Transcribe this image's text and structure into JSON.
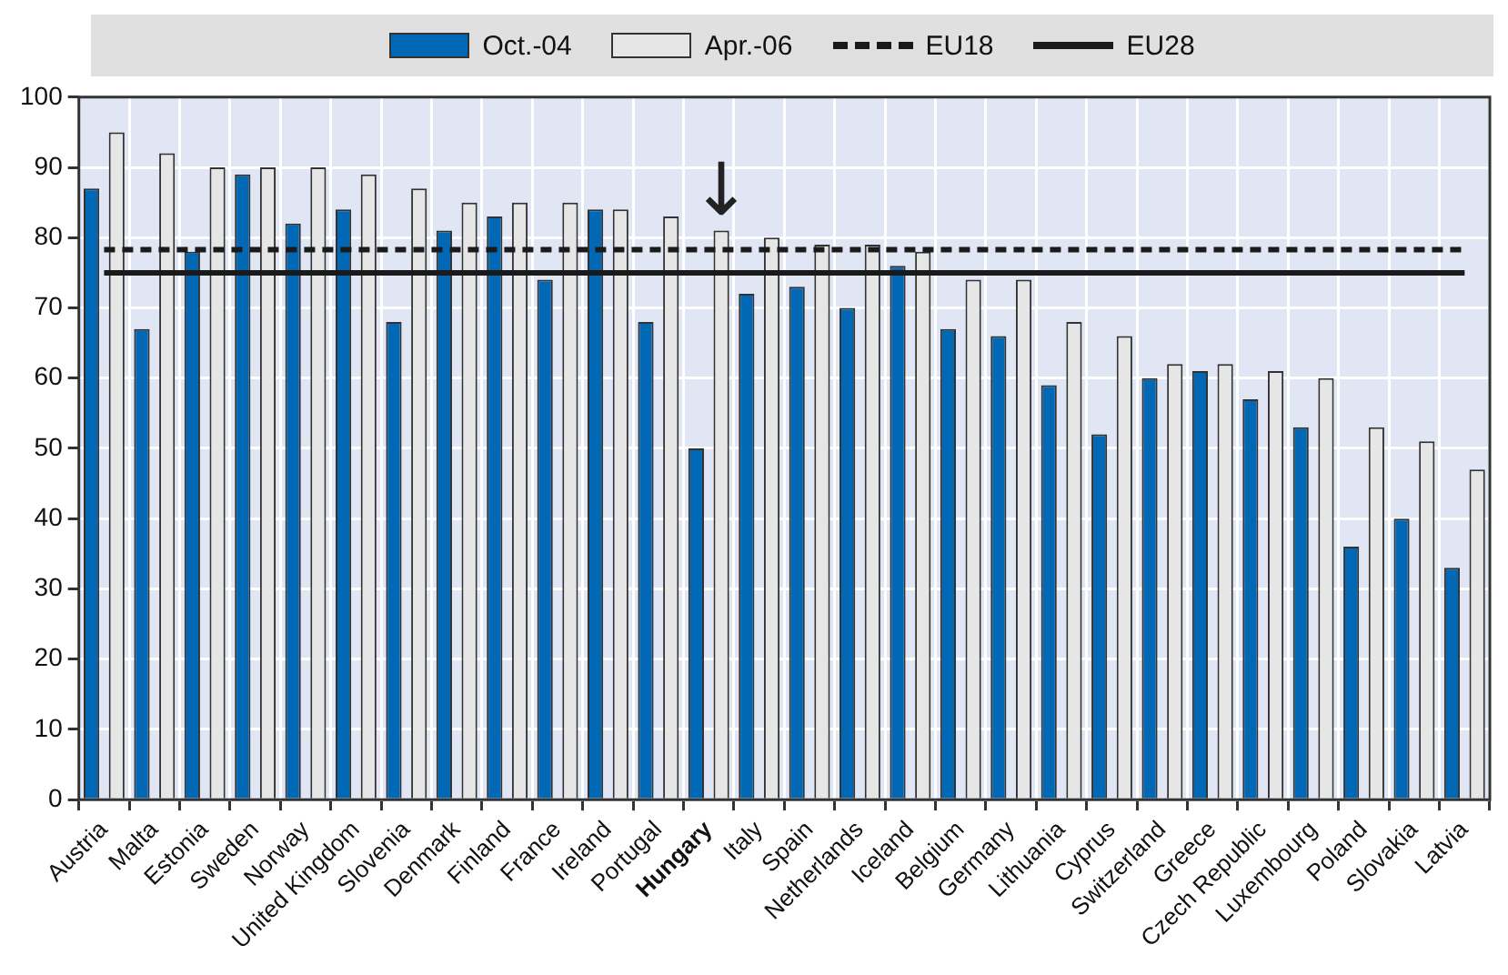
{
  "chart_data": {
    "type": "bar",
    "categories": [
      "Austria",
      "Malta",
      "Estonia",
      "Sweden",
      "Norway",
      "United Kingdom",
      "Slovenia",
      "Denmark",
      "Finland",
      "France",
      "Ireland",
      "Portugal",
      "Hungary",
      "Italy",
      "Spain",
      "Netherlands",
      "Iceland",
      "Belgium",
      "Germany",
      "Lithuania",
      "Cyprus",
      "Switzerland",
      "Greece",
      "Czech Republic",
      "Luxembourg",
      "Poland",
      "Slovakia",
      "Latvia"
    ],
    "series": [
      {
        "name": "Oct.-04",
        "color": "#0068b4",
        "values": [
          87,
          67,
          78,
          89,
          82,
          84,
          68,
          81,
          83,
          74,
          84,
          68,
          50,
          72,
          73,
          70,
          76,
          67,
          66,
          59,
          52,
          60,
          61,
          57,
          53,
          36,
          40,
          33
        ]
      },
      {
        "name": "Apr.-06",
        "color": "#e6e6e6",
        "values": [
          95,
          92,
          90,
          90,
          90,
          89,
          87,
          85,
          85,
          85,
          84,
          83,
          81,
          80,
          79,
          79,
          78,
          74,
          74,
          68,
          66,
          62,
          62,
          61,
          60,
          53,
          51,
          47
        ]
      },
      {
        "name": "EU18",
        "type": "line",
        "color": "#1a1a1a",
        "line_style": "dashed",
        "values": [
          78.3,
          78.3,
          78.3,
          78.3,
          78.3,
          78.3,
          78.3,
          78.3,
          78.3,
          78.3,
          78.3,
          78.3,
          78.3,
          78.3,
          78.3,
          78.3,
          78.3,
          78.3,
          78.3,
          78.3,
          78.3,
          78.3,
          78.3,
          78.3,
          78.3,
          78.3,
          78.3,
          78.3
        ]
      },
      {
        "name": "EU28",
        "type": "line",
        "color": "#1a1a1a",
        "line_style": "solid",
        "values": [
          75,
          75,
          75,
          75,
          75,
          75,
          75,
          75,
          75,
          75,
          75,
          75,
          75,
          75,
          75,
          75,
          75,
          75,
          75,
          75,
          75,
          75,
          75,
          75,
          75,
          75,
          75,
          75
        ]
      }
    ],
    "ylim": [
      0,
      100
    ],
    "yticks": [
      0,
      10,
      20,
      30,
      40,
      50,
      60,
      70,
      80,
      90,
      100
    ],
    "grid": true,
    "legend": "top",
    "marker": "none",
    "annotations": [
      {
        "text": "↓",
        "x": "Hungary",
        "y": 81
      }
    ]
  }
}
